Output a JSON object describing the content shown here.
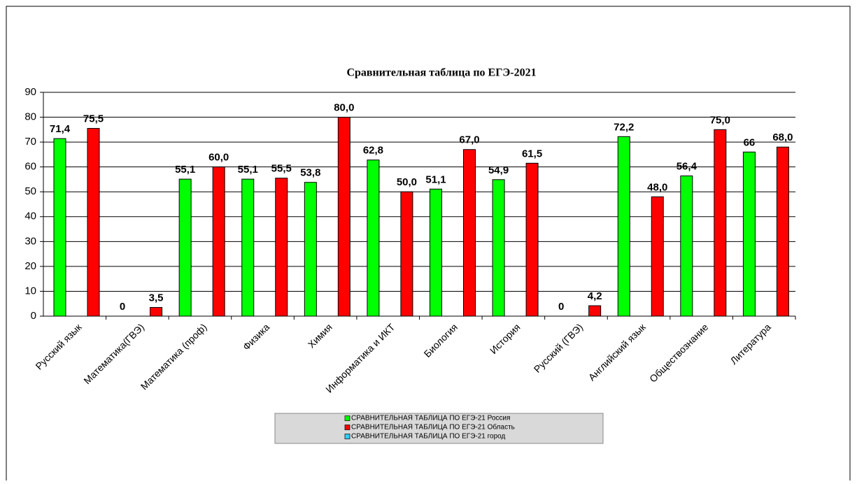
{
  "chart_data": {
    "type": "bar",
    "title": "Сравнительная  таблица  по  ЕГЭ-2021",
    "categories": [
      "Русский язык",
      "Математика(ГВЭ)",
      "Математика (проф)",
      "Физика",
      "Химия",
      "Информатика и ИКТ",
      "Биология",
      "История",
      "Русский (ГВЭ)",
      "Английский язык",
      "Обществознание",
      "Литература"
    ],
    "series": [
      {
        "name": "СРАВНИТЕЛЬНАЯ ТАБЛИЦА ПО ЕГЭ-21 Россия",
        "color": "#00ff00",
        "values": [
          71.4,
          0,
          55.1,
          55.1,
          53.8,
          62.8,
          51.1,
          54.9,
          0,
          72.2,
          56.4,
          66
        ],
        "value_labels": [
          "71,4",
          "0",
          "55,1",
          "55,1",
          "53,8",
          "62,8",
          "51,1",
          "54,9",
          "0",
          "72,2",
          "56,4",
          "66"
        ]
      },
      {
        "name": "СРАВНИТЕЛЬНАЯ ТАБЛИЦА ПО ЕГЭ-21 город",
        "color": "#33ccff",
        "values": [
          null,
          null,
          null,
          null,
          null,
          null,
          null,
          null,
          null,
          null,
          null,
          null
        ]
      },
      {
        "name": "СРАВНИТЕЛЬНАЯ ТАБЛИЦА ПО ЕГЭ-21 Область",
        "color": "#ff0000",
        "values": [
          75.5,
          3.5,
          60.0,
          55.5,
          80.0,
          50.0,
          67.0,
          61.5,
          4.2,
          48.0,
          75.0,
          68.0
        ],
        "value_labels": [
          "75,5",
          "3,5",
          "60,0",
          "55,5",
          "80,0",
          "50,0",
          "67,0",
          "61,5",
          "4,2",
          "48,0",
          "75,0",
          "68,0"
        ]
      }
    ],
    "legend_order": [
      0,
      2,
      1
    ],
    "ylim": [
      0,
      90
    ],
    "yticks": [
      0,
      10,
      20,
      30,
      40,
      50,
      60,
      70,
      80,
      90
    ],
    "grid": true
  }
}
